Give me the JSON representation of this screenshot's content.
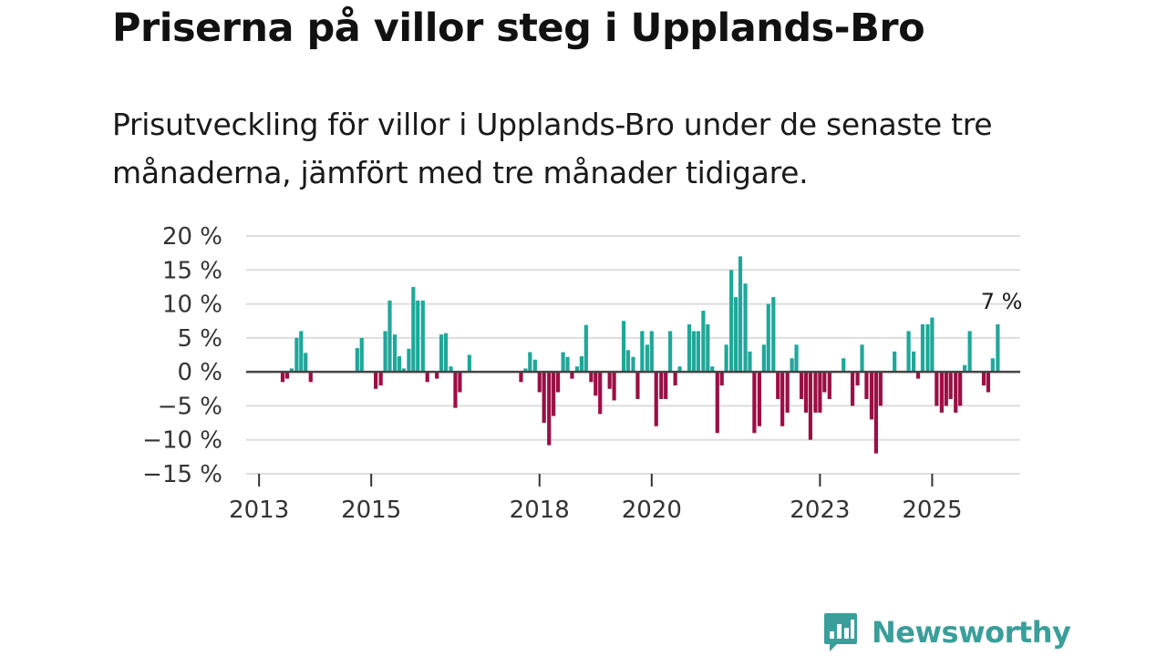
{
  "title": "Priserna på villor steg i Upplands-Bro",
  "subtitle": "Prisutveckling för villor i Upplands-Bro under de senaste tre månaderna, jämfört med tre månader tidigare.",
  "brand": {
    "name": "Newsworthy",
    "color": "#3a9e9a",
    "logo_icon": "bar-chart-speech-icon"
  },
  "colors": {
    "positive": "#1fa79a",
    "negative": "#9c0e45",
    "grid": "#dddddd",
    "zero": "#444444"
  },
  "chart_data": {
    "type": "bar",
    "title": "Priserna på villor steg i Upplands-Bro",
    "xlabel": "",
    "ylabel": "",
    "ylim": [
      -15,
      20
    ],
    "yticks": [
      20,
      15,
      10,
      5,
      0,
      -5,
      -10,
      -15
    ],
    "ytick_labels": [
      "20 %",
      "15 %",
      "10 %",
      "5 %",
      "0 %",
      "−5 %",
      "−10 %",
      "−15 %"
    ],
    "xticks": [
      {
        "value": 2013,
        "label": "2013"
      },
      {
        "value": 2015,
        "label": "2015"
      },
      {
        "value": 2018,
        "label": "2018"
      },
      {
        "value": 2020,
        "label": "2020"
      },
      {
        "value": 2023,
        "label": "2023"
      },
      {
        "value": 2025,
        "label": "2025"
      }
    ],
    "xlim": [
      2012.77,
      2026.57
    ],
    "annotation": {
      "x": 2026.4,
      "value": 7,
      "label": "7 %"
    },
    "bars": [
      {
        "x": 2013.42,
        "value": -1.5
      },
      {
        "x": 2013.5,
        "value": -1.0
      },
      {
        "x": 2013.58,
        "value": 0.5
      },
      {
        "x": 2013.67,
        "value": 5.0
      },
      {
        "x": 2013.75,
        "value": 6.0
      },
      {
        "x": 2013.83,
        "value": 2.8
      },
      {
        "x": 2013.92,
        "value": -1.5
      },
      {
        "x": 2014.75,
        "value": 3.5
      },
      {
        "x": 2014.83,
        "value": 5.0
      },
      {
        "x": 2015.08,
        "value": -2.5
      },
      {
        "x": 2015.17,
        "value": -2.0
      },
      {
        "x": 2015.25,
        "value": 6.0
      },
      {
        "x": 2015.33,
        "value": 10.5
      },
      {
        "x": 2015.42,
        "value": 5.5
      },
      {
        "x": 2015.5,
        "value": 2.3
      },
      {
        "x": 2015.58,
        "value": 0.5
      },
      {
        "x": 2015.67,
        "value": 3.4
      },
      {
        "x": 2015.75,
        "value": 12.5
      },
      {
        "x": 2015.83,
        "value": 10.5
      },
      {
        "x": 2015.92,
        "value": 10.5
      },
      {
        "x": 2016.0,
        "value": -1.5
      },
      {
        "x": 2016.17,
        "value": -1.0
      },
      {
        "x": 2016.25,
        "value": 5.5
      },
      {
        "x": 2016.33,
        "value": 5.7
      },
      {
        "x": 2016.42,
        "value": 0.8
      },
      {
        "x": 2016.5,
        "value": -5.3
      },
      {
        "x": 2016.58,
        "value": -3.0
      },
      {
        "x": 2016.75,
        "value": 2.5
      },
      {
        "x": 2017.67,
        "value": -1.5
      },
      {
        "x": 2017.75,
        "value": 0.5
      },
      {
        "x": 2017.83,
        "value": 2.9
      },
      {
        "x": 2017.92,
        "value": 1.8
      },
      {
        "x": 2018.0,
        "value": -3.0
      },
      {
        "x": 2018.08,
        "value": -7.5
      },
      {
        "x": 2018.17,
        "value": -10.8
      },
      {
        "x": 2018.25,
        "value": -6.5
      },
      {
        "x": 2018.33,
        "value": -3.0
      },
      {
        "x": 2018.42,
        "value": 2.9
      },
      {
        "x": 2018.5,
        "value": 2.2
      },
      {
        "x": 2018.58,
        "value": -1.0
      },
      {
        "x": 2018.67,
        "value": 0.8
      },
      {
        "x": 2018.75,
        "value": 2.3
      },
      {
        "x": 2018.83,
        "value": 6.9
      },
      {
        "x": 2018.92,
        "value": -1.5
      },
      {
        "x": 2019.0,
        "value": -3.5
      },
      {
        "x": 2019.08,
        "value": -6.2
      },
      {
        "x": 2019.25,
        "value": -2.5
      },
      {
        "x": 2019.33,
        "value": -4.2
      },
      {
        "x": 2019.5,
        "value": 7.5
      },
      {
        "x": 2019.58,
        "value": 3.2
      },
      {
        "x": 2019.67,
        "value": 2.2
      },
      {
        "x": 2019.75,
        "value": -4.0
      },
      {
        "x": 2019.83,
        "value": 6.0
      },
      {
        "x": 2019.92,
        "value": 4.0
      },
      {
        "x": 2020.0,
        "value": 6.0
      },
      {
        "x": 2020.08,
        "value": -8.0
      },
      {
        "x": 2020.17,
        "value": -4.0
      },
      {
        "x": 2020.25,
        "value": -4.0
      },
      {
        "x": 2020.33,
        "value": 6.0
      },
      {
        "x": 2020.42,
        "value": -2.0
      },
      {
        "x": 2020.5,
        "value": 0.8
      },
      {
        "x": 2020.67,
        "value": 7.0
      },
      {
        "x": 2020.75,
        "value": 6.0
      },
      {
        "x": 2020.83,
        "value": 6.0
      },
      {
        "x": 2020.92,
        "value": 9.0
      },
      {
        "x": 2021.0,
        "value": 7.0
      },
      {
        "x": 2021.08,
        "value": 0.8
      },
      {
        "x": 2021.17,
        "value": -9.0
      },
      {
        "x": 2021.25,
        "value": -2.0
      },
      {
        "x": 2021.33,
        "value": 4.0
      },
      {
        "x": 2021.42,
        "value": 15.0
      },
      {
        "x": 2021.5,
        "value": 11.0
      },
      {
        "x": 2021.58,
        "value": 17.0
      },
      {
        "x": 2021.67,
        "value": 13.0
      },
      {
        "x": 2021.75,
        "value": 3.0
      },
      {
        "x": 2021.83,
        "value": -9.0
      },
      {
        "x": 2021.92,
        "value": -8.0
      },
      {
        "x": 2022.0,
        "value": 4.0
      },
      {
        "x": 2022.08,
        "value": 10.0
      },
      {
        "x": 2022.17,
        "value": 11.0
      },
      {
        "x": 2022.25,
        "value": -4.0
      },
      {
        "x": 2022.33,
        "value": -8.0
      },
      {
        "x": 2022.42,
        "value": -6.0
      },
      {
        "x": 2022.5,
        "value": 2.0
      },
      {
        "x": 2022.58,
        "value": 4.0
      },
      {
        "x": 2022.67,
        "value": -4.0
      },
      {
        "x": 2022.75,
        "value": -6.0
      },
      {
        "x": 2022.83,
        "value": -10.0
      },
      {
        "x": 2022.92,
        "value": -6.0
      },
      {
        "x": 2023.0,
        "value": -6.0
      },
      {
        "x": 2023.08,
        "value": -3.0
      },
      {
        "x": 2023.17,
        "value": -4.0
      },
      {
        "x": 2023.42,
        "value": 2.0
      },
      {
        "x": 2023.58,
        "value": -5.0
      },
      {
        "x": 2023.67,
        "value": -2.0
      },
      {
        "x": 2023.75,
        "value": 4.0
      },
      {
        "x": 2023.83,
        "value": -4.0
      },
      {
        "x": 2023.92,
        "value": -7.0
      },
      {
        "x": 2024.0,
        "value": -12.0
      },
      {
        "x": 2024.08,
        "value": -5.0
      },
      {
        "x": 2024.33,
        "value": 3.0
      },
      {
        "x": 2024.58,
        "value": 6.0
      },
      {
        "x": 2024.67,
        "value": 3.0
      },
      {
        "x": 2024.75,
        "value": -1.0
      },
      {
        "x": 2024.83,
        "value": 7.0
      },
      {
        "x": 2024.92,
        "value": 7.0
      },
      {
        "x": 2025.0,
        "value": 8.0
      },
      {
        "x": 2025.08,
        "value": -5.0
      },
      {
        "x": 2025.17,
        "value": -6.0
      },
      {
        "x": 2025.25,
        "value": -5.0
      },
      {
        "x": 2025.33,
        "value": -4.0
      },
      {
        "x": 2025.42,
        "value": -6.0
      },
      {
        "x": 2025.5,
        "value": -5.0
      },
      {
        "x": 2025.58,
        "value": 1.0
      },
      {
        "x": 2025.67,
        "value": 6.0
      },
      {
        "x": 2025.92,
        "value": -2.0
      },
      {
        "x": 2026.0,
        "value": -3.0
      },
      {
        "x": 2026.08,
        "value": 2.0
      },
      {
        "x": 2026.17,
        "value": 7.0
      }
    ]
  }
}
